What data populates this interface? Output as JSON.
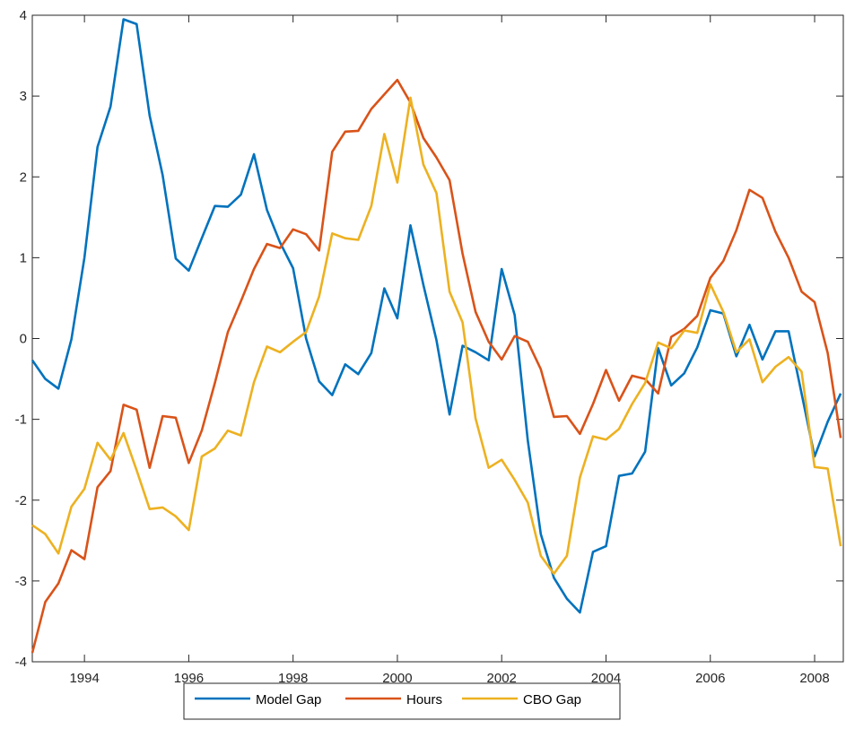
{
  "chart_data": {
    "type": "line",
    "title": "",
    "xlabel": "",
    "ylabel": "",
    "xlim": [
      1993.0,
      2008.55
    ],
    "ylim": [
      -4,
      4
    ],
    "x_ticks": [
      1994,
      1996,
      1998,
      2000,
      2002,
      2004,
      2006,
      2008
    ],
    "x_tick_labels": [
      "1994",
      "1996",
      "1998",
      "2000",
      "2002",
      "2004",
      "2006",
      "2008"
    ],
    "y_ticks": [
      -4,
      -3,
      -2,
      -1,
      0,
      1,
      2,
      3,
      4
    ],
    "y_tick_labels": [
      "-4",
      "-3",
      "-2",
      "-1",
      "0",
      "1",
      "2",
      "3",
      "4"
    ],
    "grid": false,
    "legend_position": "bottom",
    "x": [
      1993.0,
      1993.25,
      1993.5,
      1993.75,
      1994.0,
      1994.25,
      1994.5,
      1994.75,
      1995.0,
      1995.25,
      1995.5,
      1995.75,
      1996.0,
      1996.25,
      1996.5,
      1996.75,
      1997.0,
      1997.25,
      1997.5,
      1997.75,
      1998.0,
      1998.25,
      1998.5,
      1998.75,
      1999.0,
      1999.25,
      1999.5,
      1999.75,
      2000.0,
      2000.25,
      2000.5,
      2000.75,
      2001.0,
      2001.25,
      2001.5,
      2001.75,
      2002.0,
      2002.25,
      2002.5,
      2002.75,
      2003.0,
      2003.25,
      2003.5,
      2003.75,
      2004.0,
      2004.25,
      2004.5,
      2004.75,
      2005.0,
      2005.25,
      2005.5,
      2005.75,
      2006.0,
      2006.25,
      2006.5,
      2006.75,
      2007.0,
      2007.25,
      2007.5,
      2007.75,
      2008.0,
      2008.25,
      2008.5
    ],
    "series": [
      {
        "name": "Model Gap",
        "color": "#0072BD",
        "values": [
          -0.27,
          -0.5,
          -0.62,
          -0.01,
          1.0,
          2.37,
          2.87,
          3.95,
          3.89,
          2.76,
          2.02,
          0.99,
          0.84,
          1.24,
          1.64,
          1.63,
          1.78,
          2.28,
          1.59,
          1.19,
          0.87,
          0.0,
          -0.53,
          -0.7,
          -0.32,
          -0.44,
          -0.18,
          0.62,
          0.25,
          1.4,
          0.66,
          -0.02,
          -0.94,
          -0.09,
          -0.17,
          -0.27,
          0.86,
          0.29,
          -1.26,
          -2.42,
          -2.96,
          -3.22,
          -3.39,
          -2.64,
          -2.57,
          -1.7,
          -1.67,
          -1.4,
          -0.12,
          -0.58,
          -0.43,
          -0.11,
          0.35,
          0.31,
          -0.22,
          0.17,
          -0.26,
          0.09,
          0.09,
          -0.68,
          -1.46,
          -1.03,
          -0.68
        ]
      },
      {
        "name": "Hours",
        "color": "#D95319",
        "values": [
          -3.89,
          -3.26,
          -3.03,
          -2.62,
          -2.73,
          -1.84,
          -1.64,
          -0.82,
          -0.88,
          -1.6,
          -0.96,
          -0.98,
          -1.54,
          -1.14,
          -0.55,
          0.08,
          0.46,
          0.86,
          1.17,
          1.12,
          1.35,
          1.29,
          1.09,
          2.31,
          2.56,
          2.57,
          2.84,
          3.02,
          3.2,
          2.92,
          2.48,
          2.24,
          1.96,
          1.05,
          0.33,
          -0.04,
          -0.26,
          0.03,
          -0.04,
          -0.38,
          -0.97,
          -0.96,
          -1.18,
          -0.81,
          -0.39,
          -0.77,
          -0.46,
          -0.5,
          -0.68,
          0.02,
          0.12,
          0.28,
          0.75,
          0.96,
          1.34,
          1.84,
          1.74,
          1.32,
          1.0,
          0.58,
          0.45,
          -0.18,
          -1.23
        ]
      },
      {
        "name": "CBO Gap",
        "color": "#EDB120",
        "values": [
          -2.31,
          -2.42,
          -2.66,
          -2.08,
          -1.86,
          -1.29,
          -1.5,
          -1.17,
          -1.63,
          -2.11,
          -2.09,
          -2.2,
          -2.37,
          -1.46,
          -1.36,
          -1.14,
          -1.2,
          -0.54,
          -0.1,
          -0.17,
          -0.04,
          0.08,
          0.52,
          1.3,
          1.24,
          1.22,
          1.64,
          2.53,
          1.93,
          2.98,
          2.15,
          1.8,
          0.58,
          0.2,
          -0.99,
          -1.6,
          -1.5,
          -1.75,
          -2.03,
          -2.69,
          -2.91,
          -2.69,
          -1.72,
          -1.21,
          -1.25,
          -1.12,
          -0.81,
          -0.55,
          -0.05,
          -0.12,
          0.1,
          0.07,
          0.67,
          0.33,
          -0.17,
          -0.01,
          -0.54,
          -0.35,
          -0.23,
          -0.41,
          -1.59,
          -1.61,
          -2.57
        ]
      }
    ]
  }
}
